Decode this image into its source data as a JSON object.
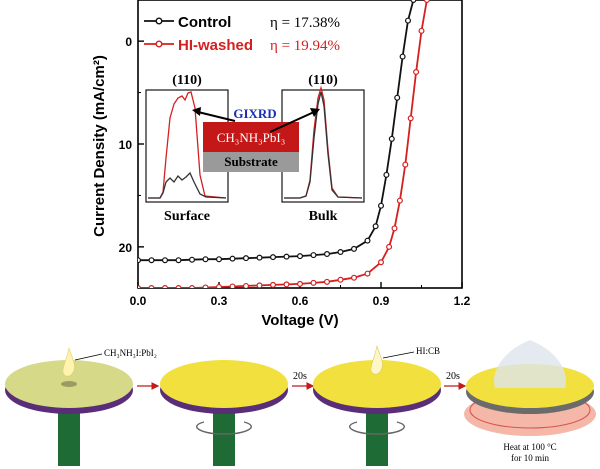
{
  "chart_data": {
    "type": "line",
    "xlabel": "Voltage (V)",
    "ylabel": "Current Density (mA/cm²)",
    "xlim": [
      0.0,
      1.2
    ],
    "ylim": [
      24,
      -4
    ],
    "y_inverted": true,
    "xticks": [
      "0.0",
      "0.3",
      "0.6",
      "0.9",
      "1.2"
    ],
    "yticks": [
      "0",
      "10",
      "20"
    ],
    "series": [
      {
        "name": "Control",
        "efficiency": "η = 17.38%",
        "color": "#111111",
        "x": [
          0.0,
          0.05,
          0.1,
          0.15,
          0.2,
          0.25,
          0.3,
          0.35,
          0.4,
          0.45,
          0.5,
          0.55,
          0.6,
          0.65,
          0.7,
          0.75,
          0.8,
          0.85,
          0.88,
          0.9,
          0.92,
          0.94,
          0.96,
          0.98,
          1.0,
          1.02
        ],
        "y": [
          21.3,
          21.3,
          21.3,
          21.3,
          21.25,
          21.2,
          21.2,
          21.15,
          21.1,
          21.05,
          21.0,
          20.95,
          20.9,
          20.8,
          20.7,
          20.5,
          20.2,
          19.4,
          18.0,
          16.0,
          13.0,
          9.5,
          5.5,
          1.5,
          -2.0,
          -4.0
        ]
      },
      {
        "name": "HI-washed",
        "efficiency": "η = 19.94%",
        "color": "#d42020",
        "x": [
          0.0,
          0.05,
          0.1,
          0.15,
          0.2,
          0.25,
          0.3,
          0.35,
          0.4,
          0.45,
          0.5,
          0.55,
          0.6,
          0.65,
          0.7,
          0.75,
          0.8,
          0.85,
          0.9,
          0.93,
          0.95,
          0.97,
          0.99,
          1.01,
          1.03,
          1.05,
          1.07
        ],
        "y": [
          24.0,
          24.0,
          24.0,
          24.0,
          24.0,
          23.95,
          23.9,
          23.85,
          23.8,
          23.75,
          23.7,
          23.65,
          23.6,
          23.5,
          23.4,
          23.2,
          23.0,
          22.6,
          21.5,
          20.0,
          18.2,
          15.5,
          12.0,
          7.5,
          3.0,
          -1.0,
          -4.0
        ]
      }
    ],
    "inset": {
      "surface_label": "Surface",
      "bulk_label": "Bulk",
      "peak_label": "(110)",
      "gixrd_label": "GIXRD",
      "layer_top": "CH₃NH₃PbI₃",
      "layer_bottom": "Substrate"
    }
  },
  "process": {
    "drop1_label": "CH₃NH₃I:PbI₂",
    "step_time_1": "20s",
    "drop2_label": "HI:CB",
    "step_time_2": "20s",
    "heat_label_line1": "Heat at 100 °C",
    "heat_label_line2": "for  10 min"
  },
  "colors": {
    "control": "#111111",
    "hi_washed": "#d42020",
    "gixrd": "#1a2fb0",
    "perovskite_layer": "#c41717",
    "substrate": "#9a9a9a",
    "disk_initial": "#d6d988",
    "disk_final": "#f1e03e",
    "disk_edge": "#5a2d78",
    "pillar": "#1f6b35"
  }
}
